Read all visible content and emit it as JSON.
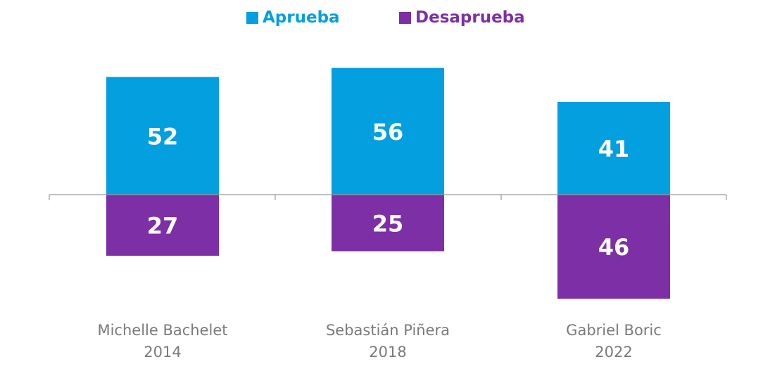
{
  "colors": {
    "approve": "#049FDF",
    "disapprove": "#7D2FA5",
    "axis": "#9a9a9a",
    "label": "#7a7a7a"
  },
  "legend": {
    "approve_label": "Aprueba",
    "disapprove_label": "Desaprueba"
  },
  "chart_data": {
    "type": "bar",
    "subtype": "diverging-stacked",
    "categories": [
      {
        "name": "Michelle Bachelet",
        "year": "2014"
      },
      {
        "name": "Sebastián Piñera",
        "year": "2018"
      },
      {
        "name": "Gabriel Boric",
        "year": "2022"
      }
    ],
    "series": [
      {
        "name": "Aprueba",
        "direction": "up",
        "values": [
          52,
          56,
          41
        ]
      },
      {
        "name": "Desaprueba",
        "direction": "down",
        "values": [
          27,
          25,
          46
        ]
      }
    ],
    "legend_position": "top-center",
    "grid": false
  }
}
